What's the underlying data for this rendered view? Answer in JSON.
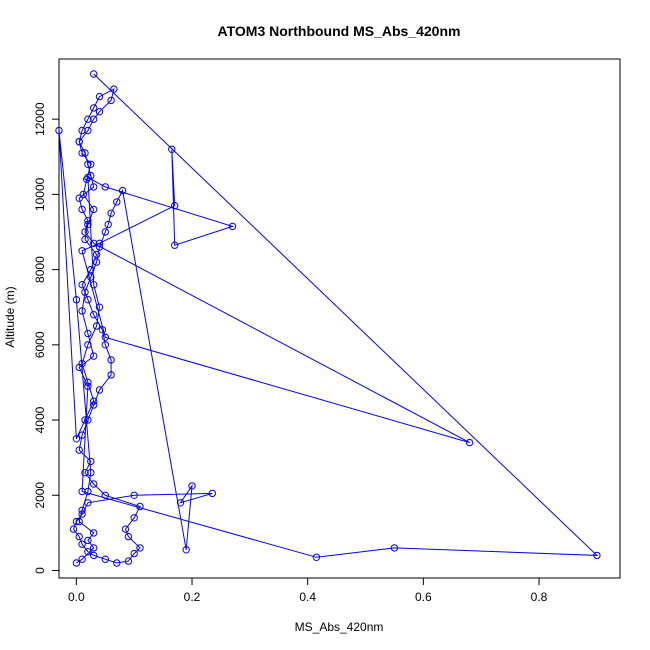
{
  "chart_data": {
    "type": "line",
    "title": "ATOM3 Northbound MS_Abs_420nm",
    "xlabel": "MS_Abs_420nm",
    "ylabel": "Altitude (m)",
    "xlim": [
      -0.03,
      0.94
    ],
    "ylim": [
      -200,
      13600
    ],
    "xticks": [
      0.0,
      0.2,
      0.4,
      0.6,
      0.8
    ],
    "xtick_labels": [
      "0.0",
      "0.2",
      "0.4",
      "0.6",
      "0.8"
    ],
    "yticks": [
      0,
      2000,
      4000,
      6000,
      8000,
      10000,
      12000
    ],
    "ytick_labels": [
      "0",
      "2000",
      "4000",
      "6000",
      "8000",
      "10000",
      "12000"
    ],
    "grid": false,
    "legend": "none",
    "color": "#0000ff",
    "marker": "open-circle",
    "series": [
      {
        "x": [
          0.03,
          0.9,
          0.55,
          0.415,
          0.01,
          0.02,
          0.005,
          0.03,
          0.02,
          0.01,
          0.015,
          0.025,
          0.035,
          0.04,
          0.05,
          0.055,
          0.06,
          0.07,
          0.08,
          0.19,
          0.2,
          0.18,
          0.235,
          0.1,
          0.02,
          0.01,
          0.0,
          -0.005,
          0.005,
          0.01,
          0.02,
          0.03,
          0.05,
          0.07,
          0.09,
          0.1,
          0.11,
          0.09,
          0.085,
          0.1,
          0.11,
          0.05,
          0.03,
          0.015,
          0.025,
          0.005,
          0.01,
          0.02,
          0.03,
          0.04,
          0.06,
          0.06,
          0.05,
          0.045,
          0.03,
          0.02,
          0.01,
          0.025,
          0.035,
          0.015,
          0.02,
          0.03,
          0.012,
          0.018,
          0.025,
          0.01,
          0.005,
          0.02,
          0.03,
          0.04,
          0.06,
          0.065,
          0.04,
          0.03,
          0.02,
          0.01,
          0.005,
          0.015,
          0.02,
          0.025,
          0.03,
          0.005,
          0.01,
          0.02,
          0.015,
          0.03,
          0.68,
          0.05,
          0.01,
          0.04,
          0.17,
          0.165,
          0.17,
          0.27,
          0.05,
          0.02,
          0.03,
          0.04,
          0.035,
          0.02,
          0.01,
          0.02,
          0.03,
          0.015,
          0.0,
          -0.03,
          0.0,
          0.025,
          0.02,
          0.01,
          0.005,
          0.03,
          0.02,
          0.03,
          0.01,
          0.0
        ],
        "y": [
          13200,
          400,
          600,
          350,
          2100,
          4900,
          5400,
          5700,
          6300,
          6900,
          7400,
          7800,
          8200,
          8600,
          9000,
          9200,
          9500,
          9800,
          10100,
          550,
          2250,
          1800,
          2050,
          2000,
          1800,
          1500,
          1300,
          1100,
          900,
          700,
          500,
          400,
          300,
          200,
          250,
          450,
          600,
          900,
          1100,
          1400,
          1700,
          2000,
          2300,
          2600,
          2900,
          3200,
          3600,
          4000,
          4400,
          4800,
          5200,
          5600,
          6000,
          6400,
          6800,
          7200,
          7600,
          8000,
          8400,
          8800,
          9200,
          9600,
          10000,
          10400,
          10800,
          11100,
          11400,
          11700,
          12000,
          12200,
          12500,
          12800,
          12600,
          12300,
          12000,
          11700,
          11400,
          11100,
          10800,
          10500,
          10200,
          9900,
          9600,
          9300,
          9000,
          8700,
          3400,
          6200,
          8500,
          8700,
          9700,
          11200,
          8650,
          9150,
          10200,
          10450,
          7600,
          7000,
          6500,
          6000,
          5500,
          5000,
          4500,
          4000,
          3500,
          11700,
          7200,
          2600,
          2100,
          1600,
          1300,
          1000,
          800,
          600,
          300,
          200
        ]
      }
    ]
  }
}
